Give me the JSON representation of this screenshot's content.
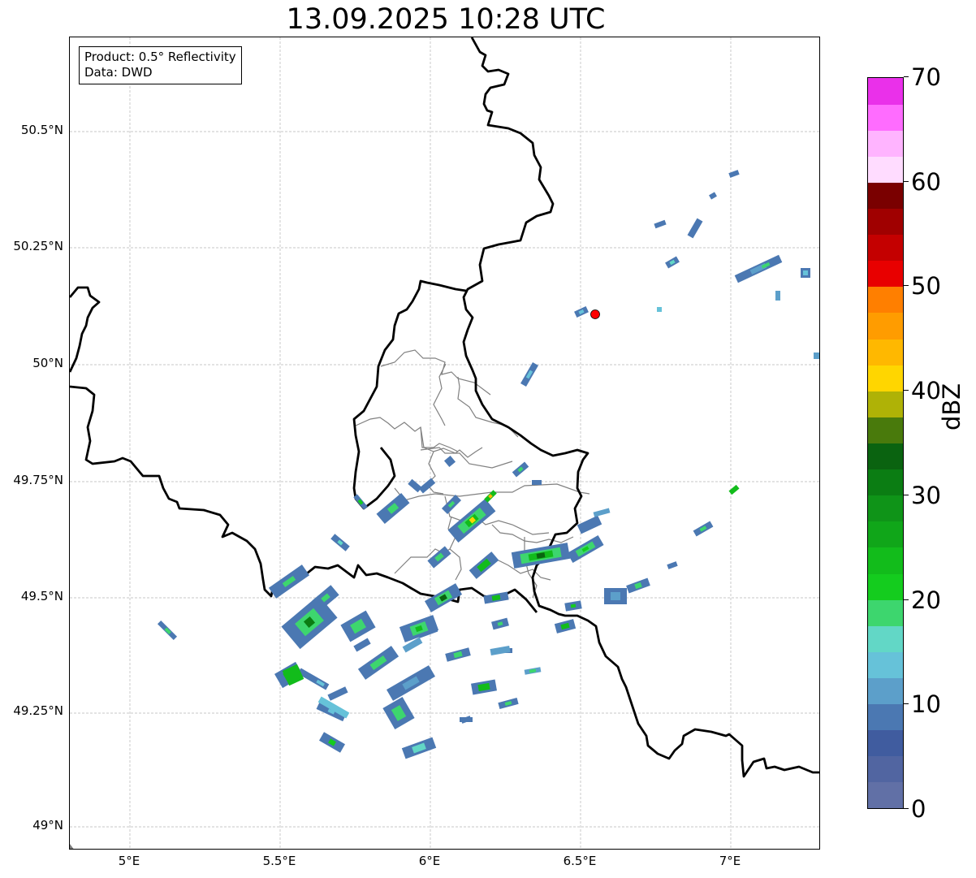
{
  "title": "13.09.2025 10:28 UTC",
  "info_box": {
    "product": "Product: 0.5° Reflectivity",
    "data": "Data: DWD"
  },
  "axes": {
    "lat_ticks": [
      "50.5°N",
      "50.25°N",
      "50°N",
      "49.75°N",
      "49.5°N",
      "49.25°N",
      "49°N"
    ],
    "lon_ticks": [
      "5°E",
      "5.5°E",
      "6°E",
      "6.5°E",
      "7°E"
    ],
    "grid": true,
    "extent": {
      "lon": [
        4.8,
        7.3
      ],
      "lat": [
        48.95,
        50.7
      ]
    }
  },
  "colorbar": {
    "label": "dBZ",
    "range": [
      0,
      70
    ],
    "tick_labels": [
      "0",
      "10",
      "20",
      "30",
      "40",
      "50",
      "60",
      "70"
    ],
    "colors": [
      "#6170a6",
      "#5165a1",
      "#405c9f",
      "#4b78b2",
      "#5c9fca",
      "#66c2d9",
      "#62d7c6",
      "#3dd66e",
      "#14cc1e",
      "#12bc1b",
      "#10a619",
      "#0f9418",
      "#0b7d13",
      "#0a6310",
      "#497a0c",
      "#afb206",
      "#ffd600",
      "#ffb800",
      "#ff9c00",
      "#ff7f00",
      "#e80000",
      "#c40000",
      "#a00000",
      "#7a0000",
      "#ffdcff",
      "#ffb4ff",
      "#ff6cff",
      "#ea30ea"
    ]
  },
  "radar_site": {
    "lon": 6.548,
    "lat": 50.11,
    "color": "#ff0000"
  },
  "map_features": [
    "national-borders",
    "luxembourg-cantons",
    "precipitation-echoes"
  ]
}
